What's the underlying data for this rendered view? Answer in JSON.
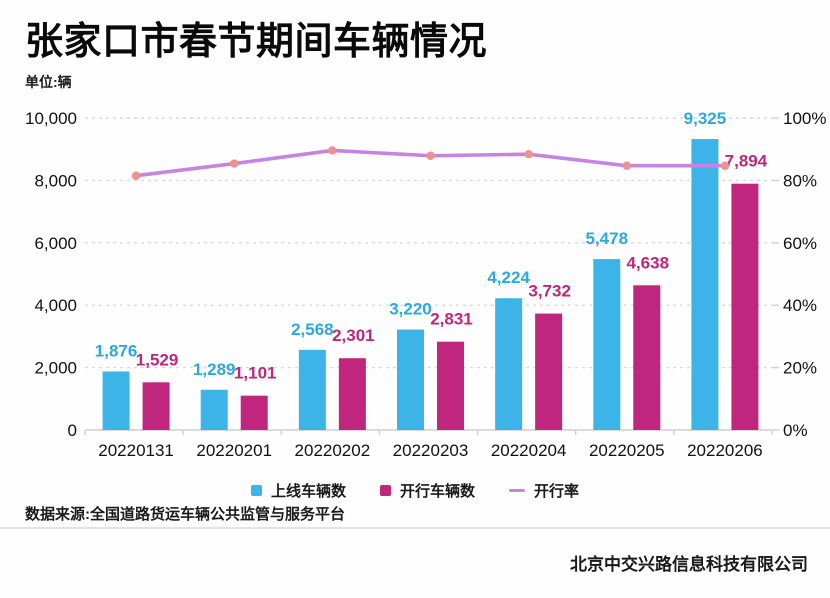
{
  "page": {
    "title": "张家口市春节期间车辆情况",
    "unit_label": "单位:辆",
    "source": "数据来源:全国道路货运车辆公共监管与服务平台",
    "company": "北京中交兴路信息科技有限公司"
  },
  "chart_data": {
    "type": "bar",
    "subtype": "grouped bars with overlay line (dual axis)",
    "categories": [
      "20220131",
      "20220201",
      "20220202",
      "20220203",
      "20220204",
      "20220205",
      "20220206"
    ],
    "series": [
      {
        "name": "上线车辆数",
        "type": "bar",
        "axis": "left",
        "color": "#3CB4E8",
        "label_color": "#2BA9E1",
        "values": [
          1876,
          1289,
          2568,
          3220,
          4224,
          5478,
          9325
        ]
      },
      {
        "name": "开行车辆数",
        "type": "bar",
        "axis": "left",
        "color": "#C0267E",
        "label_color": "#C0257E",
        "values": [
          1529,
          1101,
          2301,
          2831,
          3732,
          4638,
          7894
        ]
      },
      {
        "name": "开行率",
        "type": "line",
        "axis": "right",
        "color": "#C583E3",
        "marker_color": "#F0908F",
        "values": [
          81.5,
          85.4,
          89.6,
          87.9,
          88.4,
          84.7,
          84.7
        ]
      }
    ],
    "y_left": {
      "min": 0,
      "max": 10000,
      "ticks": [
        "0",
        "2,000",
        "4,000",
        "6,000",
        "8,000",
        "10,000"
      ]
    },
    "y_right": {
      "min": 0,
      "max": 100,
      "ticks": [
        "0%",
        "20%",
        "40%",
        "60%",
        "80%",
        "100%"
      ],
      "unit": "%"
    },
    "grid": "dashed horizontal gridlines",
    "legend_position": "bottom",
    "axis_text_color": "#111111",
    "grid_color": "#d9d9d9"
  }
}
